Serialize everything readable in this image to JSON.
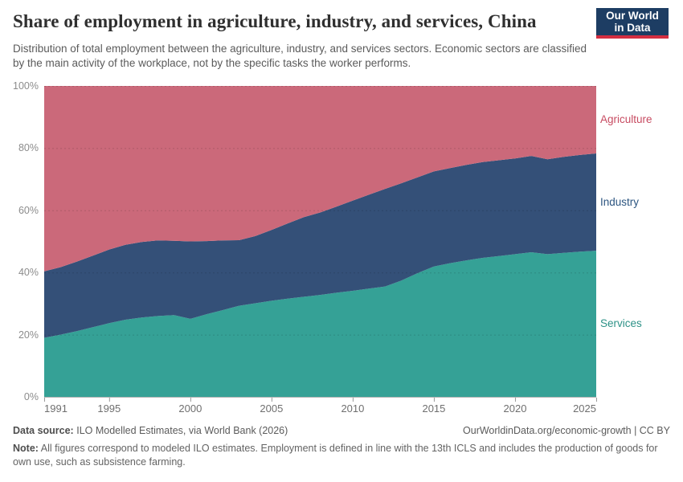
{
  "header": {
    "title": "Share of employment in agriculture, industry, and services, China",
    "subtitle": "Distribution of total employment between the agriculture, industry, and services sectors. Economic sectors are classified by the main activity of the workplace, not by the specific tasks the worker performs.",
    "logo": {
      "line1": "Our World",
      "line2": "in Data",
      "bg_color": "#1d3d63",
      "stripe_color": "#d42e41"
    }
  },
  "chart_data": {
    "type": "area",
    "stacked": true,
    "title": "Share of employment in agriculture, industry, and services, China",
    "unit": "%",
    "xlabel": "",
    "ylabel": "",
    "ylim": [
      0,
      100
    ],
    "grid": true,
    "legend_position": "right-edge-labels",
    "x": [
      1991,
      1992,
      1993,
      1994,
      1995,
      1996,
      1997,
      1998,
      1999,
      2000,
      2001,
      2002,
      2003,
      2004,
      2005,
      2006,
      2007,
      2008,
      2009,
      2010,
      2011,
      2012,
      2013,
      2014,
      2015,
      2016,
      2017,
      2018,
      2019,
      2020,
      2021,
      2022,
      2023,
      2024,
      2025
    ],
    "xticks": [
      1991,
      1995,
      2000,
      2005,
      2010,
      2015,
      2020,
      2025
    ],
    "yticks": [
      {
        "value": 0,
        "label": "0%"
      },
      {
        "value": 20,
        "label": "20%"
      },
      {
        "value": 40,
        "label": "40%"
      },
      {
        "value": 60,
        "label": "60%"
      },
      {
        "value": 80,
        "label": "80%"
      },
      {
        "value": 100,
        "label": "100%"
      }
    ],
    "series": [
      {
        "name": "Services",
        "color": "#35a196",
        "label_color": "#2d9287",
        "values": [
          19.0,
          20.0,
          21.1,
          22.4,
          23.7,
          24.8,
          25.5,
          26.0,
          26.3,
          25.1,
          26.6,
          27.9,
          29.3,
          30.1,
          30.9,
          31.6,
          32.2,
          32.8,
          33.5,
          34.1,
          34.8,
          35.5,
          37.4,
          39.8,
          41.9,
          43.0,
          43.9,
          44.7,
          45.3,
          45.9,
          46.5,
          45.9,
          46.3,
          46.7,
          47.0
        ]
      },
      {
        "name": "Industry",
        "color": "#345078",
        "label_color": "#2c5580",
        "values": [
          21.4,
          21.7,
          22.4,
          23.0,
          23.7,
          24.1,
          24.3,
          24.3,
          23.9,
          24.9,
          23.5,
          22.4,
          21.1,
          21.6,
          22.8,
          24.2,
          25.6,
          26.5,
          27.7,
          29.0,
          30.2,
          31.4,
          31.3,
          30.8,
          30.6,
          30.6,
          30.7,
          30.8,
          30.8,
          30.8,
          31.0,
          30.5,
          30.9,
          31.1,
          31.3
        ]
      },
      {
        "name": "Agriculture",
        "color": "#cb697a",
        "label_color": "#c74b61",
        "values": [
          59.6,
          58.3,
          56.5,
          54.6,
          52.6,
          51.1,
          50.2,
          49.7,
          49.8,
          50.0,
          49.9,
          49.7,
          49.6,
          48.3,
          46.3,
          44.2,
          42.2,
          40.7,
          38.8,
          36.9,
          35.0,
          33.1,
          31.3,
          29.4,
          27.5,
          26.4,
          25.4,
          24.5,
          23.9,
          23.3,
          22.5,
          23.6,
          22.8,
          22.2,
          21.7
        ]
      }
    ]
  },
  "footer": {
    "source_label": "Data source:",
    "source_text": "ILO Modelled Estimates, via World Bank (2026)",
    "rights": "OurWorldinData.org/economic-growth | CC BY",
    "note_label": "Note:",
    "note_text": "All figures correspond to modeled ILO estimates. Employment is defined in line with the 13th ICLS and includes the production of goods for own use, such as subsistence farming."
  }
}
